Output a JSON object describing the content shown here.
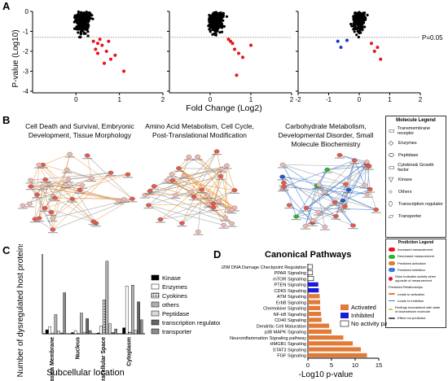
{
  "panel_labels": {
    "a": "A",
    "b": "B",
    "c": "C",
    "d": "D"
  },
  "volcano": {
    "ylabel": "P-value (Log10)",
    "xlabel": "Fold Change (Log2)",
    "threshold_label": "P=0.05",
    "yticks": [
      "-4",
      "-3",
      "-2",
      "-1",
      "0"
    ],
    "xticks_1": [
      "0",
      "1",
      "2"
    ],
    "xticks_2": [
      "0",
      "1",
      "2"
    ],
    "xticks_3": [
      "-2",
      "-1",
      "0",
      "1",
      "2"
    ]
  },
  "networks": {
    "titles": [
      "Cell Death and Survival, Embryonic Development, Tissue Morphology",
      "Amino Acid Metabolism, Cell Cycle, Post-Translational Modification",
      "Carbohydrate Metabolism, Developmental Disorder, Small Molecule Biochemistry"
    ]
  },
  "molecule_legend": {
    "title": "Molecule Legend",
    "items": [
      "Transmembrane receptor",
      "Enzymes",
      "Peptidase",
      "Cytokine& Growth factor",
      "Kinase",
      "Others",
      "Transcription regulator",
      "Transporter"
    ]
  },
  "prediction_legend": {
    "title": "Prediction Legend",
    "items": [
      "Increased measurement",
      "Decreased measurement",
      "Predicted activation",
      "Predicted inhibition",
      "Glow Indicates activity when opposite of measurement",
      "Predicted Relationships",
      "Leads to activation",
      "Leads to inhibition",
      "Findings inconsistent with state of downstream molecule",
      "Effect not predicted"
    ]
  },
  "subcellular": {
    "ylabel": "Number of dysregulated host proteins",
    "xlabel": "Subcellular location",
    "legend": [
      "Kinase",
      "Enzymes",
      "Cyokines",
      "others",
      "Peptidase",
      "transcription regulator",
      "transporter"
    ]
  },
  "pathways": {
    "title": "Canonical Pathways",
    "xlabel": "-Log10 p-value",
    "xticks": [
      "0",
      "5",
      "10",
      "15"
    ],
    "legend": [
      "Activated",
      "Inhibited",
      "No activity pattern available"
    ]
  },
  "colors": {
    "activated": "#e07b39",
    "inhibited": "#1a1adb",
    "upregulated": "#e8141c",
    "downregulated": "#2233cc",
    "node_red": "#e8584a"
  },
  "chart_data": [
    {
      "type": "bar",
      "title": "",
      "xlabel": "Subcellular location",
      "ylabel": "Number of dysregulated host proteins",
      "ylim": [
        0,
        200
      ],
      "categories": [
        "Plasma Membrane",
        "Nucleus",
        "Extracellular Space",
        "Cytoplasm"
      ],
      "series": [
        {
          "name": "Kinase",
          "values": [
            10,
            3,
            2,
            15
          ]
        },
        {
          "name": "Enzymes",
          "values": [
            18,
            8,
            20,
            120
          ]
        },
        {
          "name": "Cyokines",
          "values": [
            2,
            0,
            85,
            4
          ]
        },
        {
          "name": "others",
          "values": [
            48,
            52,
            182,
            122
          ]
        },
        {
          "name": "Peptidase",
          "values": [
            7,
            4,
            25,
            9
          ]
        },
        {
          "name": "transcription regulator",
          "values": [
            2,
            38,
            3,
            80
          ]
        },
        {
          "name": "transporter",
          "values": [
            103,
            8,
            12,
            35
          ]
        }
      ]
    },
    {
      "type": "bar",
      "orientation": "horizontal",
      "title": "Canonical Pathways",
      "xlabel": "-Log10 p-value",
      "xlim": [
        0,
        15
      ],
      "categories": [
        "i2IM DNA Damage Checkpoint Regulation",
        "PPAR Signaling",
        "mTOR Signaling",
        "PTEN Signaling",
        "CDK5 Signaling",
        "ATM Signaling",
        "ErbB Signaling",
        "Chemokine Signaling",
        "NF-kB Signaling",
        "CD40 Signaling",
        "Dendritic Cell Maturation",
        "p38 MAPK Signaling",
        "Neuroinflammation Signaling pathway",
        "HMGB1 Signaling",
        "STAT3 Signaling",
        "FGF Signaling"
      ],
      "values": [
        1.0,
        1.0,
        1.2,
        2.2,
        2.3,
        2.5,
        2.6,
        2.6,
        2.8,
        2.9,
        4.5,
        5.0,
        7.5,
        9.5,
        11.2,
        12.5
      ],
      "status": [
        "none",
        "none",
        "none",
        "inhibited",
        "inhibited",
        "activated",
        "activated",
        "activated",
        "activated",
        "activated",
        "activated",
        "activated",
        "activated",
        "activated",
        "activated",
        "activated"
      ]
    }
  ]
}
